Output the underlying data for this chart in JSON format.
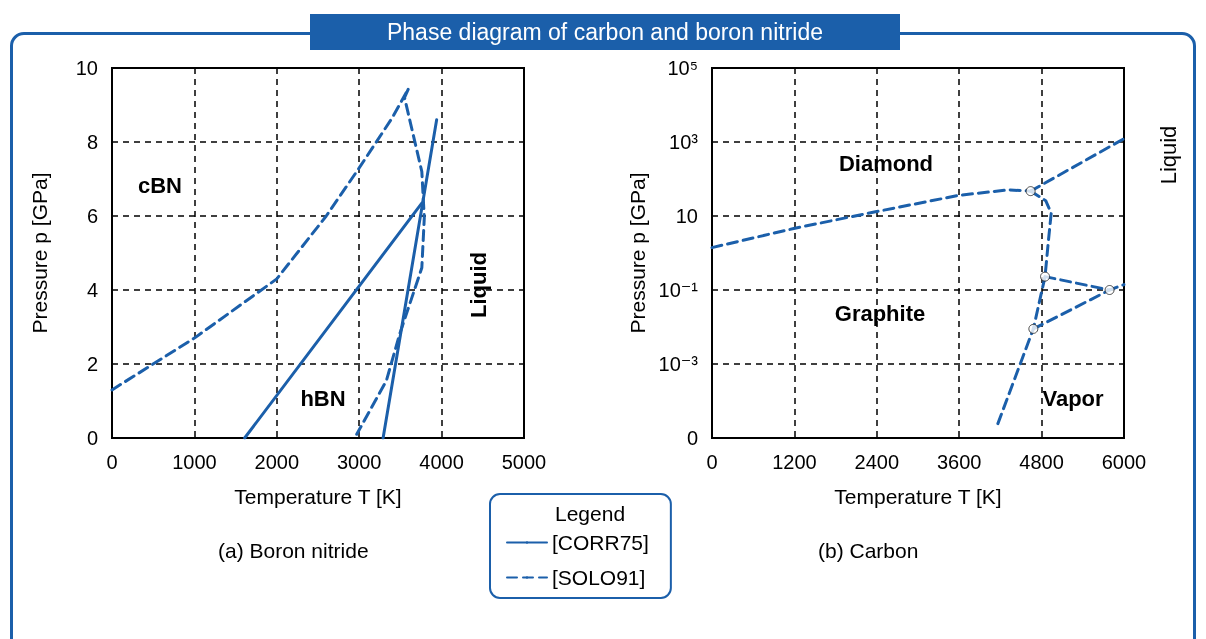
{
  "chart_data": [
    {
      "type": "line",
      "title": "Phase diagram of carbon and boron nitride",
      "subtitle": "(a) Boron nitride",
      "xlabel": "Temperature T [K]",
      "ylabel": "Pressure p [GPa]",
      "legend_title": "Legend",
      "legend": "bottom",
      "grid": true,
      "marker": "none",
      "xlim": [
        0,
        5000
      ],
      "xticks": [
        0,
        1000,
        2000,
        3000,
        4000,
        5000
      ],
      "ylim": [
        0,
        10
      ],
      "yticks": [
        0,
        2,
        4,
        6,
        8,
        10
      ],
      "series": [
        {
          "name": "[CORR75]",
          "color": "#1b5faa",
          "line_style": "solid",
          "x": [
            1610,
            3760
          ],
          "values": [
            0,
            6.35
          ]
        },
        {
          "color": "#1b5faa",
          "line_style": "solid",
          "x": [
            3290,
            3940
          ],
          "values": [
            0,
            8.6
          ]
        },
        {
          "name": "[SOLO91]",
          "color": "#1b5faa",
          "line_style": "dashed",
          "x": [
            0,
            1000,
            2000,
            2600,
            3000,
            3400,
            3600,
            3550,
            3760,
            3790,
            3760,
            3490,
            3330,
            2970
          ],
          "values": [
            1.3,
            2.7,
            4.3,
            6.0,
            7.3,
            8.65,
            9.45,
            9.2,
            7.2,
            5.95,
            4.6,
            2.8,
            1.55,
            0.1
          ]
        }
      ],
      "annotations": [
        "cBN",
        "hBN",
        "Liquid"
      ]
    },
    {
      "type": "line",
      "subtitle": "(b) Carbon",
      "xlabel": "Temperature T [K]",
      "ylabel": "Pressure p [GPa]",
      "grid": true,
      "marker": "none",
      "log": "y",
      "line_style": "dashed",
      "xlim": [
        0,
        6000
      ],
      "xticks": [
        0,
        1200,
        2400,
        3600,
        4800,
        6000
      ],
      "ylim": [
        1e-05,
        100000
      ],
      "yticks": [
        {
          "value": 1e-05,
          "label": "0"
        },
        {
          "value": 0.001,
          "label": "10⁻³"
        },
        {
          "value": 0.1,
          "label": "10⁻¹"
        },
        {
          "value": 10,
          "label": "10"
        },
        {
          "value": 1000,
          "label": "10³"
        },
        {
          "value": 100000,
          "label": "10⁵"
        }
      ],
      "series": [
        {
          "color": "#1b5faa",
          "x": [
            0,
            1190,
            2380,
            3590,
            4320,
            4640
          ],
          "values": [
            1.4,
            4.6,
            13,
            36,
            51,
            47
          ]
        },
        {
          "color": "#1b5faa",
          "x": [
            4640,
            6000
          ],
          "values": [
            47,
            1230
          ]
        },
        {
          "color": "#1b5faa",
          "x": [
            4640,
            4860,
            4940,
            4900,
            4850,
            4680,
            4150
          ],
          "values": [
            47,
            26,
            12,
            2.2,
            0.23,
            0.0089,
            2.1e-05
          ]
        },
        {
          "color": "#1b5faa",
          "x": [
            4850,
            5790,
            6000
          ],
          "values": [
            0.23,
            0.1,
            0.14
          ]
        },
        {
          "color": "#1b5faa",
          "x": [
            4680,
            5790
          ],
          "values": [
            0.0089,
            0.1
          ]
        },
        {
          "type": "scatter",
          "color": "#ffffff",
          "marker": "circle",
          "x": [
            4640,
            4850,
            4680,
            5790
          ],
          "values": [
            47,
            0.23,
            0.0089,
            0.1
          ]
        }
      ],
      "annotations": [
        "Diamond",
        "Graphite",
        "Vapor",
        "Liquid"
      ]
    }
  ]
}
